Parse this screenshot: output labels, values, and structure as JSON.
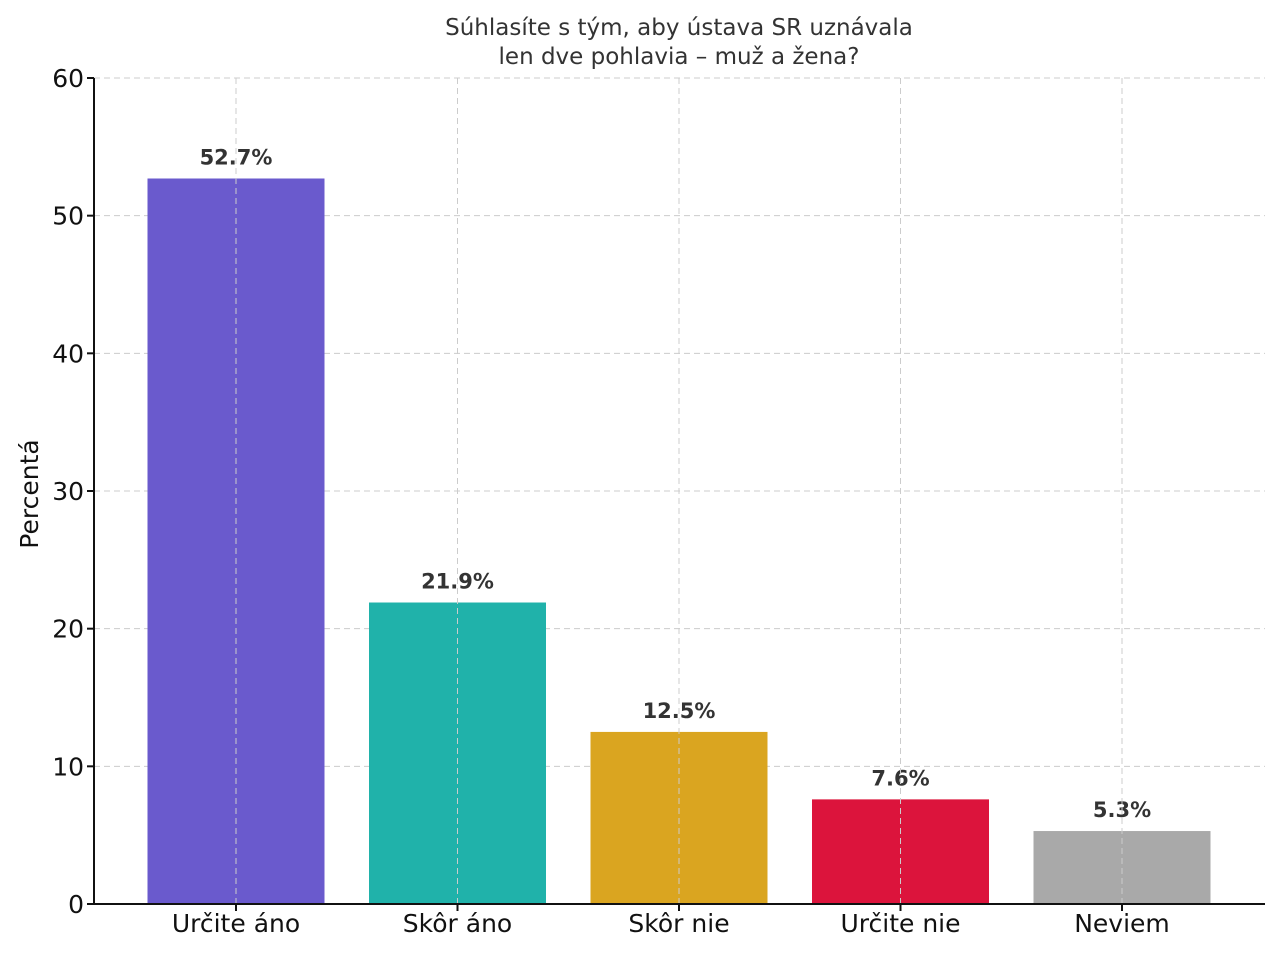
{
  "chart_data": {
    "type": "bar",
    "title_lines": [
      "Súhlasíte s tým, aby ústava SR uznávala",
      "len dve pohlavia – muž a žena?"
    ],
    "xlabel": "",
    "ylabel": "Percentá",
    "ylim": [
      0,
      60
    ],
    "yticks": [
      0,
      10,
      20,
      30,
      40,
      50,
      60
    ],
    "grid": true,
    "categories": [
      "Určite áno",
      "Skôr áno",
      "Skôr nie",
      "Určite nie",
      "Neviem"
    ],
    "values": [
      52.7,
      21.9,
      12.5,
      7.6,
      5.3
    ],
    "data_labels": [
      "52.7%",
      "21.9%",
      "12.5%",
      "7.6%",
      "5.3%"
    ],
    "colors": [
      "#6a5acd",
      "#20b2aa",
      "#daa520",
      "#dc143c",
      "#a9a9a9"
    ]
  }
}
